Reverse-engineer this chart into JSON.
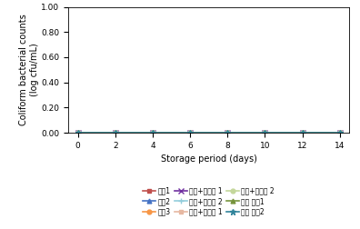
{
  "x": [
    0,
    2,
    4,
    6,
    8,
    10,
    12,
    14
  ],
  "series": [
    {
      "label": "백미1",
      "color": "#c0504d",
      "marker": "s",
      "markersize": 3.5,
      "values": [
        0,
        0,
        0,
        0,
        0,
        0,
        0,
        0
      ],
      "linestyle": "-",
      "lw": 1.2
    },
    {
      "label": "백미2",
      "color": "#4472c4",
      "marker": "^",
      "markersize": 3.5,
      "values": [
        0,
        0,
        0,
        0,
        0,
        0,
        0,
        0
      ],
      "linestyle": "-",
      "lw": 1.2
    },
    {
      "label": "백미3",
      "color": "#f79646",
      "marker": "o",
      "markersize": 3.5,
      "values": [
        0,
        0,
        0,
        0,
        0,
        0,
        0,
        0
      ],
      "linestyle": "-",
      "lw": 1.2
    },
    {
      "label": "백미+소맥분 1",
      "color": "#7030a0",
      "marker": "x",
      "markersize": 4.5,
      "values": [
        0,
        0,
        0,
        0,
        0,
        0,
        0,
        0
      ],
      "linestyle": "-",
      "lw": 1.2
    },
    {
      "label": "백미+소맦분 2",
      "color": "#92cddc",
      "marker": "+",
      "markersize": 4.5,
      "values": [
        0,
        0,
        0,
        0,
        0,
        0,
        0,
        0
      ],
      "linestyle": "-",
      "lw": 1.2
    },
    {
      "label": "백미+전분당 1",
      "color": "#e6b8a2",
      "marker": "s",
      "markersize": 3.5,
      "values": [
        0,
        0,
        0,
        0,
        0,
        0,
        0,
        0
      ],
      "linestyle": "-",
      "lw": 1.2
    },
    {
      "label": "백미+전분당 2",
      "color": "#c4d79b",
      "marker": "o",
      "markersize": 3.5,
      "values": [
        0,
        0,
        0,
        0,
        0,
        0,
        0,
        0
      ],
      "linestyle": "-",
      "lw": 1.2
    },
    {
      "label": "기타 재렄1",
      "color": "#76933c",
      "marker": "^",
      "markersize": 3.5,
      "values": [
        0,
        0,
        0,
        0,
        0,
        0,
        0,
        0
      ],
      "linestyle": "-",
      "lw": 1.2
    },
    {
      "label": "기타 재렄2",
      "color": "#31849b",
      "marker": "*",
      "markersize": 4.5,
      "values": [
        0,
        0,
        0,
        0,
        0,
        0,
        0,
        0
      ],
      "linestyle": "-",
      "lw": 1.2
    }
  ],
  "xlabel": "Storage period (days)",
  "ylabel": "Coliform bacterial counts\n(log cfu/mL)",
  "ylim": [
    0.0,
    1.0
  ],
  "yticks": [
    0.0,
    0.2,
    0.4,
    0.6,
    0.8,
    1.0
  ],
  "xticks": [
    0,
    2,
    4,
    6,
    8,
    10,
    12,
    14
  ],
  "background_color": "#ffffff",
  "legend_ncol": 3,
  "legend_fontsize": 5.5,
  "axis_fontsize": 7.0,
  "tick_fontsize": 6.5
}
